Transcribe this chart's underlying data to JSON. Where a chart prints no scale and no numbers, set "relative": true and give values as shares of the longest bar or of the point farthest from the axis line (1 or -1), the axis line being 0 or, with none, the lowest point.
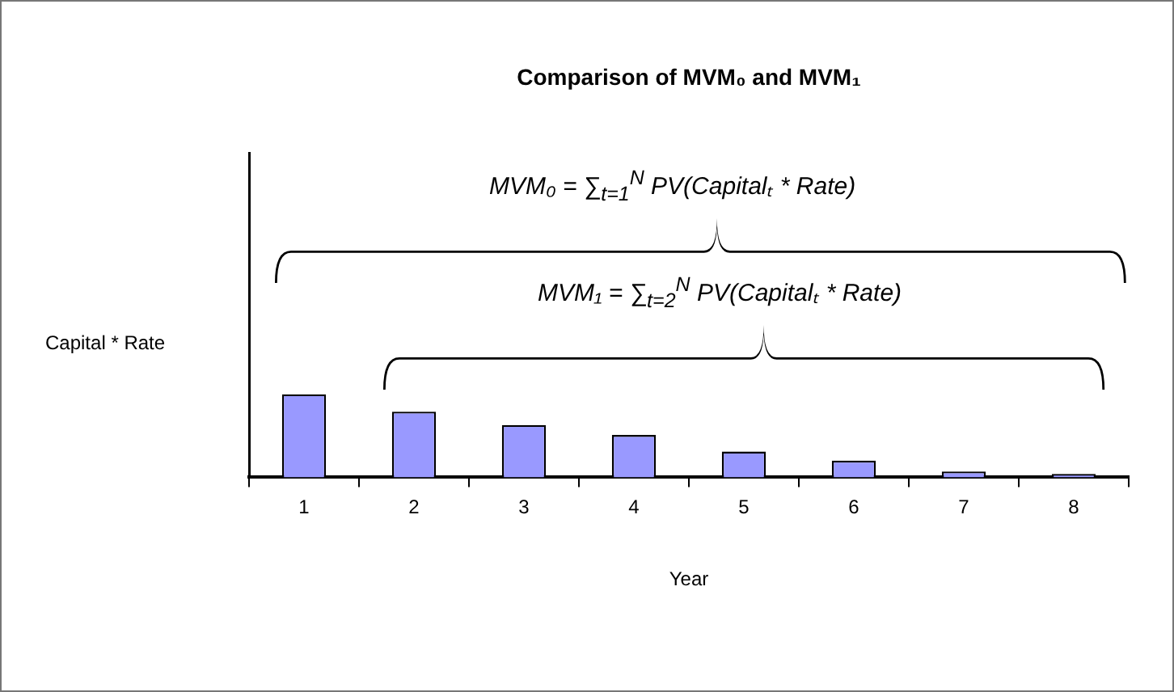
{
  "chart_data": {
    "type": "bar",
    "title": "Comparison of MVM₀ and MVM₁",
    "xlabel": "Year",
    "ylabel": "Capital * Rate",
    "categories": [
      "1",
      "2",
      "3",
      "4",
      "5",
      "6",
      "7",
      "8"
    ],
    "values": [
      1,
      0.79,
      0.63,
      0.51,
      0.31,
      0.2,
      0.07,
      0.04
    ],
    "color": "#9999ff",
    "relative": true,
    "legend": false,
    "grid": false,
    "annotations": [
      "MVM₀ = ∑$_{t=1}$$^{N}$ PV(Capitalₜ * Rate)",
      "MVM₁ = ∑$_{t=2}$$^{N}$ PV(Capitalₜ * Rate)"
    ]
  }
}
